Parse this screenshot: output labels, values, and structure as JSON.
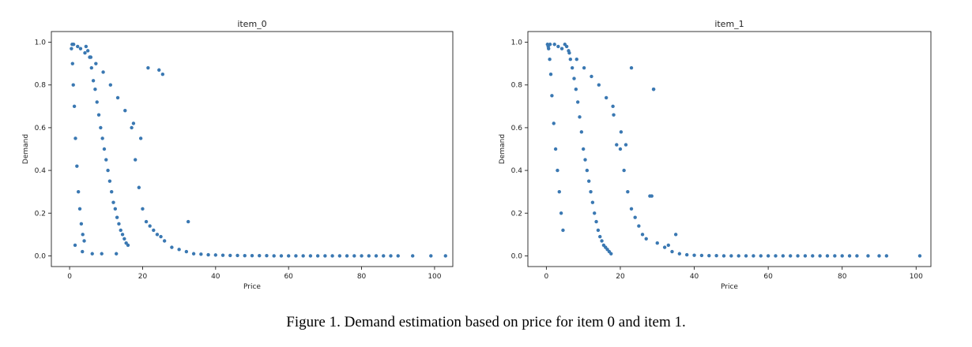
{
  "caption": "Figure 1. Demand estimation based on price for item 0 and item 1.",
  "colors": {
    "points": "#3a78b2",
    "axis": "#222222",
    "background": "#ffffff"
  },
  "chart_data": [
    {
      "type": "scatter",
      "title": "item_0",
      "xlabel": "Price",
      "ylabel": "Demand",
      "xlim": [
        -5,
        105
      ],
      "ylim": [
        -0.05,
        1.05
      ],
      "xticks": [
        0,
        20,
        40,
        60,
        80,
        100
      ],
      "yticks": [
        0.0,
        0.2,
        0.4,
        0.6,
        0.8,
        1.0
      ],
      "xtick_labels": [
        "0",
        "20",
        "40",
        "60",
        "80",
        "100"
      ],
      "ytick_labels": [
        "0.0",
        "0.2",
        "0.4",
        "0.6",
        "0.8",
        "1.0"
      ],
      "grid": false,
      "series": [
        {
          "x": [
            0.5,
            0.8,
            1.0,
            1.3,
            1.6,
            2.0,
            2.4,
            2.8,
            3.2,
            3.6,
            4.0,
            4.5,
            5.0,
            5.5,
            6.0,
            6.5,
            7.0,
            7.5,
            8.0,
            8.5,
            9.0,
            9.5,
            10.0,
            10.5,
            11.0,
            11.5,
            12.0,
            12.5,
            13.0,
            13.5,
            14.0,
            14.5,
            15.0,
            15.5,
            16.0,
            17.0,
            18.0,
            19.0,
            20.0,
            21.0,
            22.0,
            23.0,
            24.0,
            25.0,
            26.0,
            28.0,
            30.0,
            32.0,
            34.0,
            36.0,
            38.0,
            40.0,
            42.0,
            44.0,
            46.0,
            48.0,
            50.0,
            52.0,
            54.0,
            56.0,
            58.0,
            60.0,
            62.0,
            64.0,
            66.0,
            68.0,
            70.0,
            72.0,
            74.0,
            76.0,
            78.0,
            80.0,
            82.0,
            84.0,
            86.0,
            88.0,
            90.0,
            94.0,
            99.0,
            103.0,
            0.7,
            1.1,
            2.2,
            3.0,
            4.2,
            5.8,
            7.2,
            9.2,
            11.2,
            13.2,
            15.2,
            17.5,
            19.5,
            21.5,
            24.5,
            25.5,
            32.5,
            1.5,
            3.5,
            6.2,
            8.8,
            12.8
          ],
          "y": [
            0.97,
            0.9,
            0.8,
            0.7,
            0.55,
            0.42,
            0.3,
            0.22,
            0.15,
            0.1,
            0.07,
            0.98,
            0.96,
            0.93,
            0.88,
            0.82,
            0.78,
            0.72,
            0.66,
            0.6,
            0.55,
            0.5,
            0.45,
            0.4,
            0.35,
            0.3,
            0.25,
            0.22,
            0.18,
            0.15,
            0.12,
            0.1,
            0.08,
            0.06,
            0.05,
            0.6,
            0.45,
            0.32,
            0.22,
            0.16,
            0.14,
            0.12,
            0.1,
            0.09,
            0.07,
            0.04,
            0.03,
            0.02,
            0.01,
            0.008,
            0.005,
            0.004,
            0.003,
            0.002,
            0.002,
            0.001,
            0.001,
            0.001,
            0.001,
            0.0,
            0.0,
            0.0,
            0.0,
            0.0,
            0.0,
            0.0,
            0.0,
            0.0,
            0.0,
            0.0,
            0.0,
            0.0,
            0.0,
            0.0,
            0.0,
            0.0,
            0.0,
            0.0,
            0.0,
            0.0,
            0.99,
            0.99,
            0.98,
            0.97,
            0.95,
            0.93,
            0.9,
            0.86,
            0.8,
            0.74,
            0.68,
            0.62,
            0.55,
            0.88,
            0.87,
            0.85,
            0.16,
            0.05,
            0.02,
            0.01,
            0.01,
            0.01
          ]
        }
      ]
    },
    {
      "type": "scatter",
      "title": "item_1",
      "xlabel": "Price",
      "ylabel": "Demand",
      "xlim": [
        -5,
        104
      ],
      "ylim": [
        -0.05,
        1.05
      ],
      "xticks": [
        0,
        20,
        40,
        60,
        80,
        100
      ],
      "yticks": [
        0.0,
        0.2,
        0.4,
        0.6,
        0.8,
        1.0
      ],
      "xtick_labels": [
        "0",
        "20",
        "40",
        "60",
        "80",
        "100"
      ],
      "ytick_labels": [
        "0.0",
        "0.2",
        "0.4",
        "0.6",
        "0.8",
        "1.0"
      ],
      "grid": false,
      "series": [
        {
          "x": [
            0.3,
            0.6,
            0.9,
            1.2,
            1.5,
            2.0,
            2.5,
            3.0,
            3.5,
            4.0,
            4.5,
            5.0,
            5.5,
            6.0,
            6.5,
            7.0,
            7.5,
            8.0,
            8.5,
            9.0,
            9.5,
            10.0,
            10.5,
            11.0,
            11.5,
            12.0,
            12.5,
            13.0,
            13.5,
            14.0,
            14.5,
            15.0,
            15.5,
            16.0,
            16.5,
            17.0,
            17.5,
            18.0,
            19.0,
            20.0,
            21.0,
            22.0,
            23.0,
            24.0,
            25.0,
            26.0,
            27.0,
            28.0,
            29.0,
            30.0,
            32.0,
            34.0,
            36.0,
            38.0,
            40.0,
            42.0,
            44.0,
            46.0,
            48.0,
            50.0,
            52.0,
            54.0,
            56.0,
            58.0,
            60.0,
            62.0,
            64.0,
            66.0,
            68.0,
            70.0,
            72.0,
            74.0,
            76.0,
            78.0,
            80.0,
            82.0,
            84.0,
            87.0,
            90.0,
            92.0,
            101.0,
            0.5,
            1.0,
            2.2,
            3.2,
            4.2,
            6.2,
            8.2,
            10.2,
            12.2,
            14.2,
            16.2,
            18.2,
            20.2,
            21.5,
            23.0,
            28.5,
            29.0,
            33.0,
            35.0
          ],
          "y": [
            0.99,
            0.97,
            0.92,
            0.85,
            0.75,
            0.62,
            0.5,
            0.4,
            0.3,
            0.2,
            0.12,
            0.99,
            0.98,
            0.96,
            0.92,
            0.88,
            0.83,
            0.78,
            0.72,
            0.65,
            0.58,
            0.5,
            0.45,
            0.4,
            0.35,
            0.3,
            0.25,
            0.2,
            0.16,
            0.12,
            0.09,
            0.07,
            0.05,
            0.04,
            0.03,
            0.02,
            0.01,
            0.7,
            0.52,
            0.5,
            0.4,
            0.3,
            0.22,
            0.18,
            0.14,
            0.1,
            0.08,
            0.28,
            0.78,
            0.06,
            0.04,
            0.02,
            0.01,
            0.005,
            0.003,
            0.002,
            0.001,
            0.001,
            0.0,
            0.0,
            0.0,
            0.0,
            0.0,
            0.0,
            0.0,
            0.0,
            0.0,
            0.0,
            0.0,
            0.0,
            0.0,
            0.0,
            0.0,
            0.0,
            0.0,
            0.0,
            0.0,
            0.0,
            0.0,
            0.0,
            0.0,
            0.98,
            0.99,
            0.99,
            0.98,
            0.97,
            0.95,
            0.92,
            0.88,
            0.84,
            0.8,
            0.74,
            0.66,
            0.58,
            0.52,
            0.88,
            0.28,
            0.78,
            0.05,
            0.1
          ]
        }
      ]
    }
  ]
}
